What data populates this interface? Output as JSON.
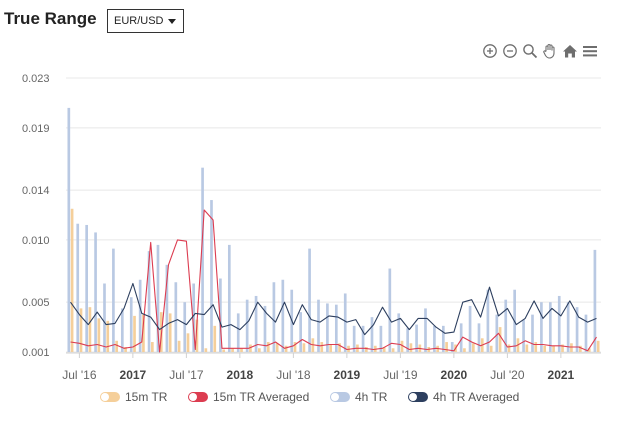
{
  "header": {
    "title": "True Range",
    "pair_selected": "EUR/USD"
  },
  "toolbar": [
    {
      "name": "zoom-in-icon"
    },
    {
      "name": "zoom-out-icon"
    },
    {
      "name": "zoom-selection-icon"
    },
    {
      "name": "pan-hand-icon"
    },
    {
      "name": "home-reset-icon"
    },
    {
      "name": "menu-icon"
    }
  ],
  "colors": {
    "tr15m": "#f5cf9a",
    "tr15m_avg": "#dc3c50",
    "tr4h": "#b9c9e3",
    "tr4h_avg": "#2d3f5f",
    "grid": "#e8e8e8",
    "axis_text": "#666666"
  },
  "legend": [
    {
      "label": "15m TR",
      "color": "#f5cf9a"
    },
    {
      "label": "15m TR Averaged",
      "color": "#dc3c50"
    },
    {
      "label": "4h TR",
      "color": "#b9c9e3"
    },
    {
      "label": "4h TR Averaged",
      "color": "#2d3f5f"
    }
  ],
  "chart_data": {
    "type": "bar",
    "x_start": "2016-06",
    "x_labels": [
      {
        "label": "Jul '16",
        "index": 1,
        "bold": false
      },
      {
        "label": "2017",
        "index": 7,
        "bold": true
      },
      {
        "label": "Jul '17",
        "index": 13,
        "bold": false
      },
      {
        "label": "2018",
        "index": 19,
        "bold": true
      },
      {
        "label": "Jul '18",
        "index": 25,
        "bold": false
      },
      {
        "label": "2019",
        "index": 31,
        "bold": true
      },
      {
        "label": "Jul '19",
        "index": 37,
        "bold": false
      },
      {
        "label": "2020",
        "index": 43,
        "bold": true
      },
      {
        "label": "Jul '20",
        "index": 49,
        "bold": false
      },
      {
        "label": "2021",
        "index": 55,
        "bold": true
      }
    ],
    "y_ticks": [
      "0.001",
      "0.005",
      "0.010",
      "0.014",
      "0.019",
      "0.023"
    ],
    "ylim": [
      0.001,
      0.023
    ],
    "grid": true,
    "legend_position": "bottom",
    "series": [
      {
        "name": "15m TR",
        "kind": "bar",
        "values": [
          0.0125,
          0.0045,
          0.0046,
          0.0037,
          0.0035,
          0.0019,
          0.0014,
          0.0039,
          0.004,
          0.0018,
          0.0042,
          0.0041,
          0.0019,
          0.0025,
          0.0036,
          0.0013,
          0.0031,
          0.0012,
          0.0013,
          0.0013,
          0.0016,
          0.0013,
          0.0018,
          0.0017,
          0.0015,
          0.0018,
          0.0017,
          0.0021,
          0.0018,
          0.0016,
          0.0017,
          0.0015,
          0.0016,
          0.0014,
          0.0015,
          0.0014,
          0.0013,
          0.0019,
          0.0017,
          0.0016,
          0.0014,
          0.0015,
          0.0018,
          0.0016,
          0.0013,
          0.0017,
          0.0021,
          0.0015,
          0.003,
          0.0016,
          0.0021,
          0.0016,
          0.0018,
          0.0015,
          0.0015,
          0.0016,
          0.0017,
          0.0015,
          0.0013,
          0.0019
        ]
      },
      {
        "name": "15m TR Averaged",
        "kind": "line",
        "values": [
          0.0018,
          0.0017,
          0.0015,
          0.0016,
          0.0014,
          0.0016,
          0.0013,
          0.0014,
          0.0018,
          0.0098,
          0.001,
          0.008,
          0.01,
          0.0099,
          0.0012,
          0.0124,
          0.0116,
          0.0013,
          0.0013,
          0.0013,
          0.0013,
          0.0016,
          0.0015,
          0.0018,
          0.0013,
          0.0015,
          0.002,
          0.0016,
          0.0015,
          0.0016,
          0.0016,
          0.0012,
          0.0013,
          0.0013,
          0.0012,
          0.0013,
          0.0017,
          0.0016,
          0.0012,
          0.0013,
          0.0012,
          0.0013,
          0.0012,
          0.0011,
          0.0022,
          0.0018,
          0.0015,
          0.0018,
          0.0025,
          0.0014,
          0.0015,
          0.0019,
          0.0016,
          0.0016,
          0.0015,
          0.0015,
          0.0014,
          0.0014,
          0.0011,
          0.0022
        ]
      },
      {
        "name": "4h TR",
        "kind": "bar",
        "values": [
          0.0206,
          0.0113,
          0.0112,
          0.0106,
          0.0065,
          0.0093,
          0.0045,
          0.0054,
          0.0068,
          0.0091,
          0.0096,
          0.008,
          0.0066,
          0.005,
          0.0065,
          0.0158,
          0.0132,
          0.0069,
          0.0096,
          0.0041,
          0.0052,
          0.0055,
          0.0047,
          0.0066,
          0.0068,
          0.006,
          0.0042,
          0.0093,
          0.0052,
          0.0049,
          0.0048,
          0.0057,
          0.0031,
          0.0031,
          0.0038,
          0.0031,
          0.0077,
          0.0041,
          0.0029,
          0.0032,
          0.0045,
          0.0031,
          0.0031,
          0.0018,
          0.0033,
          0.0047,
          0.0033,
          0.006,
          0.004,
          0.0052,
          0.006,
          0.0036,
          0.004,
          0.005,
          0.005,
          0.0055,
          0.005,
          0.0046,
          0.004,
          0.0092
        ]
      },
      {
        "name": "4h TR Averaged",
        "kind": "line",
        "values": [
          0.005,
          0.004,
          0.0032,
          0.0042,
          0.0032,
          0.0033,
          0.0045,
          0.0065,
          0.0041,
          0.0038,
          0.0028,
          0.0033,
          0.0036,
          0.0032,
          0.0041,
          0.004,
          0.0048,
          0.003,
          0.0032,
          0.0028,
          0.0035,
          0.005,
          0.0041,
          0.0034,
          0.005,
          0.0032,
          0.0048,
          0.0036,
          0.0034,
          0.0039,
          0.0038,
          0.0034,
          0.0036,
          0.0024,
          0.0032,
          0.0046,
          0.0034,
          0.0037,
          0.0028,
          0.0037,
          0.0037,
          0.003,
          0.0025,
          0.0026,
          0.005,
          0.0052,
          0.0038,
          0.0062,
          0.0039,
          0.0045,
          0.0032,
          0.0037,
          0.0051,
          0.0037,
          0.0045,
          0.0039,
          0.0051,
          0.0038,
          0.0034,
          0.0037
        ]
      }
    ]
  }
}
